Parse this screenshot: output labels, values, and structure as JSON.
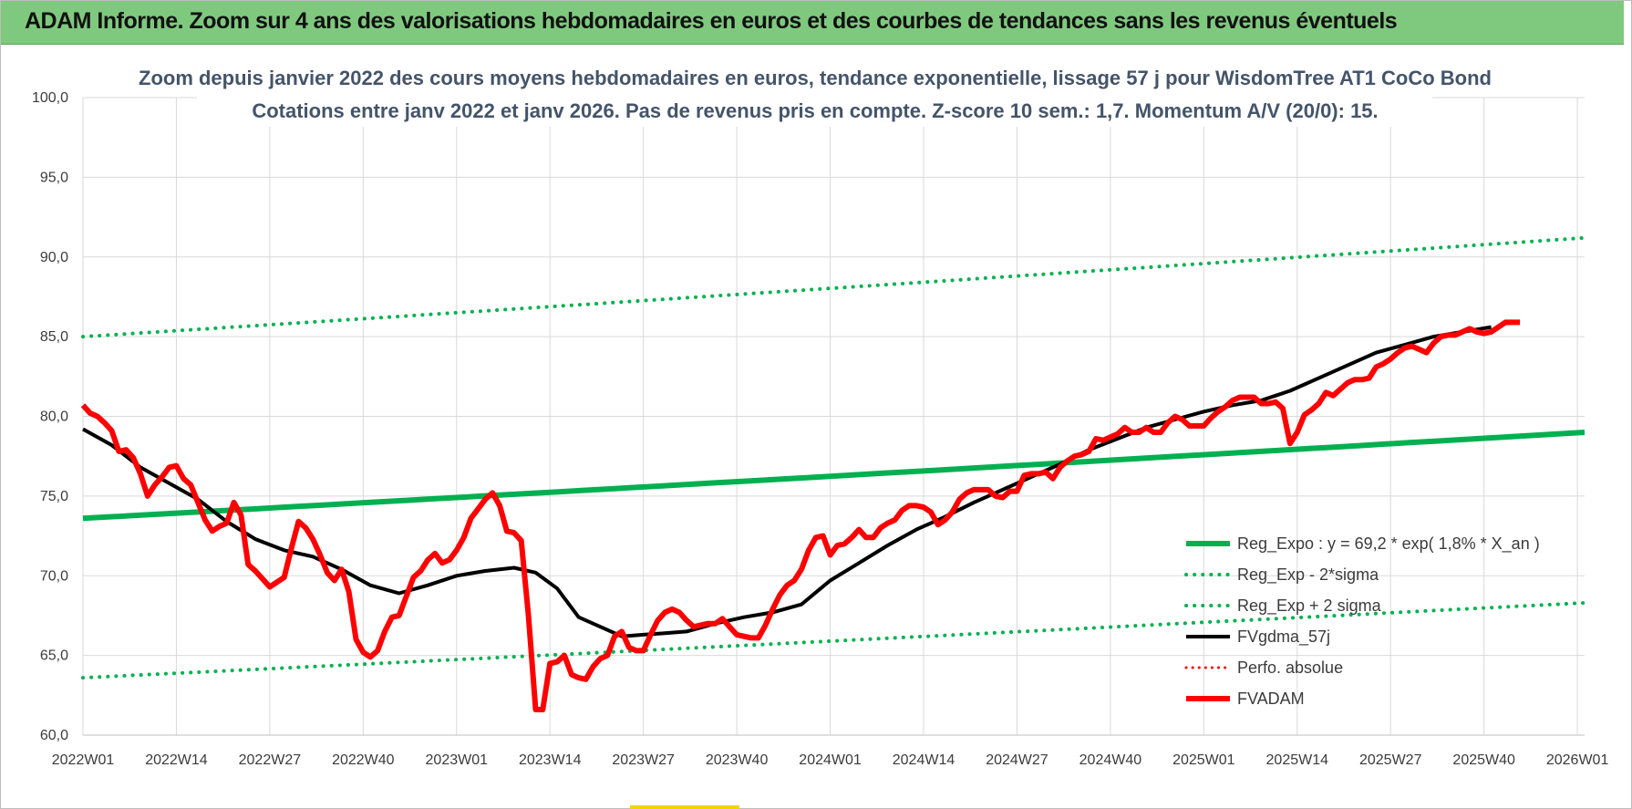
{
  "banner": {
    "title": "ADAM Informe. Zoom sur 4 ans des valorisations hebdomadaires en euros et des courbes de tendances sans les revenus éventuels"
  },
  "colors": {
    "banner_bg": "#7fc97f",
    "title_text": "#44546a",
    "trend_green": "#00b050",
    "fv_red": "#ff0000",
    "smooth_black": "#000000"
  },
  "chart_data": {
    "type": "line",
    "title": "Zoom depuis janvier 2022 des cours moyens hebdomadaires en euros, tendance exponentielle, lissage 57 j pour WisdomTree AT1 CoCo Bond",
    "subtitle": "Cotations entre janv 2022 et janv 2026. Pas de revenus pris en compte. Z-score 10 sem.: 1,7. Momentum A/V (20/0): 15.",
    "x_tick_labels": [
      "2022W01",
      "2022W14",
      "2022W27",
      "2022W40",
      "2023W01",
      "2023W14",
      "2023W27",
      "2023W40",
      "2024W01",
      "2024W14",
      "2024W27",
      "2024W40",
      "2025W01",
      "2025W14",
      "2025W27",
      "2025W40",
      "2026W01"
    ],
    "x_range": [
      0,
      209
    ],
    "y_tick_labels": [
      "100,0",
      "95,0",
      "90,0",
      "85,0",
      "80,0",
      "75,0",
      "70,0",
      "65,0",
      "60,0"
    ],
    "ylim": [
      60,
      100
    ],
    "grid": true,
    "legend_position": "bottom-right",
    "series": [
      {
        "name": "Reg_Expo : y = 69,2 * exp( 1,8% *  X_an )",
        "style": "solid-green-thick",
        "start": 73.6,
        "end": 79.0
      },
      {
        "name": "Reg_Exp - 2*sigma",
        "style": "dotted-green",
        "start": 63.6,
        "end": 68.3
      },
      {
        "name": "Reg_Exp + 2 sigma",
        "style": "dotted-green",
        "start": 85.0,
        "end": 91.2
      },
      {
        "name": "FVgdma_57j",
        "style": "solid-black",
        "points": [
          [
            0,
            79.2
          ],
          [
            4,
            78.2
          ],
          [
            8,
            76.8
          ],
          [
            12,
            75.8
          ],
          [
            16,
            74.8
          ],
          [
            20,
            73.4
          ],
          [
            24,
            72.3
          ],
          [
            28,
            71.6
          ],
          [
            32,
            71.2
          ],
          [
            36,
            70.4
          ],
          [
            40,
            69.4
          ],
          [
            44,
            68.9
          ],
          [
            48,
            69.4
          ],
          [
            52,
            70.0
          ],
          [
            56,
            70.3
          ],
          [
            60,
            70.5
          ],
          [
            63,
            70.2
          ],
          [
            66,
            69.2
          ],
          [
            69,
            67.4
          ],
          [
            72,
            66.8
          ],
          [
            75,
            66.2
          ],
          [
            78,
            66.3
          ],
          [
            81,
            66.4
          ],
          [
            84,
            66.5
          ],
          [
            88,
            67.0
          ],
          [
            92,
            67.4
          ],
          [
            96,
            67.7
          ],
          [
            100,
            68.2
          ],
          [
            104,
            69.7
          ],
          [
            108,
            70.8
          ],
          [
            112,
            71.9
          ],
          [
            116,
            72.9
          ],
          [
            120,
            73.7
          ],
          [
            124,
            74.6
          ],
          [
            128,
            75.4
          ],
          [
            132,
            76.2
          ],
          [
            136,
            77.0
          ],
          [
            140,
            77.9
          ],
          [
            144,
            78.6
          ],
          [
            148,
            79.3
          ],
          [
            152,
            79.8
          ],
          [
            156,
            80.3
          ],
          [
            160,
            80.7
          ],
          [
            164,
            81.0
          ],
          [
            168,
            81.6
          ],
          [
            172,
            82.4
          ],
          [
            176,
            83.2
          ],
          [
            180,
            84.0
          ],
          [
            184,
            84.5
          ],
          [
            188,
            85.0
          ],
          [
            192,
            85.3
          ],
          [
            196,
            85.6
          ]
        ]
      },
      {
        "name": "Perfo. absolue",
        "style": "dotted-red",
        "points": []
      },
      {
        "name": "FVADAM",
        "style": "solid-red-thick",
        "points": [
          [
            0,
            80.7
          ],
          [
            1,
            80.2
          ],
          [
            2,
            80.0
          ],
          [
            3,
            79.6
          ],
          [
            4,
            79.1
          ],
          [
            5,
            77.8
          ],
          [
            6,
            77.9
          ],
          [
            7,
            77.4
          ],
          [
            8,
            76.4
          ],
          [
            9,
            75.0
          ],
          [
            10,
            75.7
          ],
          [
            11,
            76.2
          ],
          [
            12,
            76.8
          ],
          [
            13,
            76.9
          ],
          [
            14,
            76.1
          ],
          [
            15,
            75.7
          ],
          [
            16,
            74.6
          ],
          [
            17,
            73.5
          ],
          [
            18,
            72.8
          ],
          [
            19,
            73.1
          ],
          [
            20,
            73.3
          ],
          [
            21,
            74.6
          ],
          [
            22,
            73.8
          ],
          [
            23,
            70.7
          ],
          [
            24,
            70.3
          ],
          [
            25,
            69.8
          ],
          [
            26,
            69.3
          ],
          [
            27,
            69.6
          ],
          [
            28,
            69.9
          ],
          [
            29,
            71.7
          ],
          [
            30,
            73.4
          ],
          [
            31,
            73.0
          ],
          [
            32,
            72.3
          ],
          [
            33,
            71.3
          ],
          [
            34,
            70.2
          ],
          [
            35,
            69.7
          ],
          [
            36,
            70.4
          ],
          [
            37,
            69.0
          ],
          [
            38,
            66.0
          ],
          [
            39,
            65.2
          ],
          [
            40,
            64.9
          ],
          [
            41,
            65.3
          ],
          [
            42,
            66.5
          ],
          [
            43,
            67.4
          ],
          [
            44,
            67.5
          ],
          [
            45,
            68.7
          ],
          [
            46,
            69.9
          ],
          [
            47,
            70.3
          ],
          [
            48,
            71.0
          ],
          [
            49,
            71.4
          ],
          [
            50,
            70.8
          ],
          [
            51,
            71.0
          ],
          [
            52,
            71.6
          ],
          [
            53,
            72.4
          ],
          [
            54,
            73.6
          ],
          [
            55,
            74.2
          ],
          [
            56,
            74.8
          ],
          [
            57,
            75.2
          ],
          [
            58,
            74.4
          ],
          [
            59,
            72.8
          ],
          [
            60,
            72.7
          ],
          [
            61,
            72.2
          ],
          [
            62,
            67.5
          ],
          [
            63,
            61.6
          ],
          [
            64,
            61.6
          ],
          [
            65,
            64.5
          ],
          [
            66,
            64.6
          ],
          [
            67,
            65.0
          ],
          [
            68,
            63.8
          ],
          [
            69,
            63.6
          ],
          [
            70,
            63.5
          ],
          [
            71,
            64.3
          ],
          [
            72,
            64.8
          ],
          [
            73,
            65.0
          ],
          [
            74,
            66.2
          ],
          [
            75,
            66.5
          ],
          [
            76,
            65.5
          ],
          [
            77,
            65.3
          ],
          [
            78,
            65.3
          ],
          [
            79,
            66.3
          ],
          [
            80,
            67.2
          ],
          [
            81,
            67.7
          ],
          [
            82,
            67.9
          ],
          [
            83,
            67.7
          ],
          [
            84,
            67.2
          ],
          [
            85,
            66.8
          ],
          [
            86,
            66.9
          ],
          [
            87,
            67.0
          ],
          [
            88,
            67.0
          ],
          [
            89,
            67.3
          ],
          [
            90,
            66.8
          ],
          [
            91,
            66.3
          ],
          [
            92,
            66.2
          ],
          [
            93,
            66.1
          ],
          [
            94,
            66.1
          ],
          [
            95,
            66.9
          ],
          [
            96,
            67.9
          ],
          [
            97,
            68.8
          ],
          [
            98,
            69.4
          ],
          [
            99,
            69.7
          ],
          [
            100,
            70.4
          ],
          [
            101,
            71.6
          ],
          [
            102,
            72.4
          ],
          [
            103,
            72.5
          ],
          [
            104,
            71.3
          ],
          [
            105,
            71.9
          ],
          [
            106,
            72.0
          ],
          [
            107,
            72.4
          ],
          [
            108,
            72.9
          ],
          [
            109,
            72.4
          ],
          [
            110,
            72.4
          ],
          [
            111,
            73.0
          ],
          [
            112,
            73.3
          ],
          [
            113,
            73.5
          ],
          [
            114,
            74.1
          ],
          [
            115,
            74.4
          ],
          [
            116,
            74.4
          ],
          [
            117,
            74.3
          ],
          [
            118,
            74.0
          ],
          [
            119,
            73.2
          ],
          [
            120,
            73.5
          ],
          [
            121,
            74.0
          ],
          [
            122,
            74.8
          ],
          [
            123,
            75.2
          ],
          [
            124,
            75.4
          ],
          [
            125,
            75.4
          ],
          [
            126,
            75.4
          ],
          [
            127,
            75.0
          ],
          [
            128,
            74.9
          ],
          [
            129,
            75.3
          ],
          [
            130,
            75.3
          ],
          [
            131,
            76.3
          ],
          [
            132,
            76.4
          ],
          [
            133,
            76.4
          ],
          [
            134,
            76.5
          ],
          [
            135,
            76.1
          ],
          [
            136,
            76.8
          ],
          [
            137,
            77.2
          ],
          [
            138,
            77.5
          ],
          [
            139,
            77.6
          ],
          [
            140,
            77.8
          ],
          [
            141,
            78.6
          ],
          [
            142,
            78.5
          ],
          [
            143,
            78.7
          ],
          [
            144,
            78.9
          ],
          [
            145,
            79.3
          ],
          [
            146,
            79.0
          ],
          [
            147,
            79.0
          ],
          [
            148,
            79.3
          ],
          [
            149,
            79.0
          ],
          [
            150,
            79.0
          ],
          [
            151,
            79.6
          ],
          [
            152,
            80.0
          ],
          [
            153,
            79.8
          ],
          [
            154,
            79.4
          ],
          [
            155,
            79.4
          ],
          [
            156,
            79.4
          ],
          [
            157,
            79.9
          ],
          [
            158,
            80.3
          ],
          [
            159,
            80.6
          ],
          [
            160,
            81.0
          ],
          [
            161,
            81.2
          ],
          [
            162,
            81.2
          ],
          [
            163,
            81.2
          ],
          [
            164,
            80.8
          ],
          [
            165,
            80.8
          ],
          [
            166,
            80.9
          ],
          [
            167,
            80.5
          ],
          [
            168,
            78.3
          ],
          [
            169,
            79.0
          ],
          [
            170,
            80.1
          ],
          [
            171,
            80.4
          ],
          [
            172,
            80.8
          ],
          [
            173,
            81.5
          ],
          [
            174,
            81.3
          ],
          [
            175,
            81.7
          ],
          [
            176,
            82.1
          ],
          [
            177,
            82.3
          ],
          [
            178,
            82.3
          ],
          [
            179,
            82.4
          ],
          [
            180,
            83.1
          ],
          [
            181,
            83.3
          ],
          [
            182,
            83.6
          ],
          [
            183,
            84.0
          ],
          [
            184,
            84.3
          ],
          [
            185,
            84.4
          ],
          [
            186,
            84.2
          ],
          [
            187,
            84.0
          ],
          [
            188,
            84.6
          ],
          [
            189,
            85.0
          ],
          [
            190,
            85.1
          ],
          [
            191,
            85.1
          ],
          [
            192,
            85.3
          ],
          [
            193,
            85.5
          ],
          [
            194,
            85.3
          ],
          [
            195,
            85.2
          ],
          [
            196,
            85.3
          ],
          [
            197,
            85.6
          ],
          [
            198,
            85.9
          ],
          [
            199,
            85.9
          ],
          [
            200,
            85.9
          ]
        ]
      }
    ]
  }
}
